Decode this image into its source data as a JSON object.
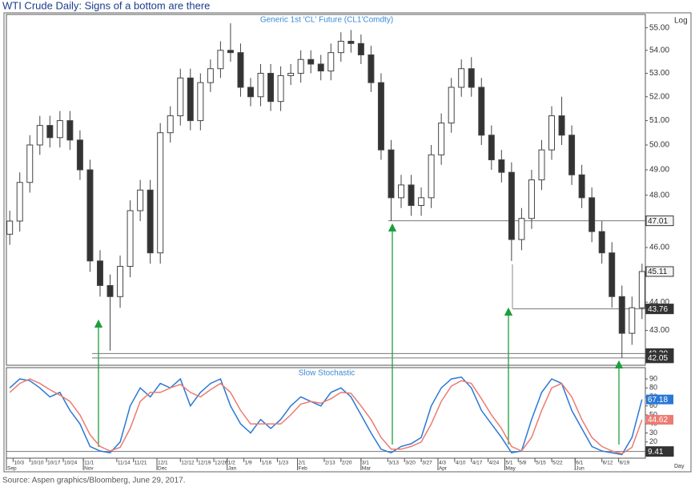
{
  "title": "WTI Crude Daily: Signs of a bottom are there",
  "source": "Source: Aspen graphics/Bloomberg, June 29, 2017.",
  "chart_data": [
    {
      "type": "candlestick",
      "title": "Generic  1st  'CL'  Future  (CL1'Comdty)",
      "scale_label": "Log",
      "log_scale": true,
      "x": [
        0,
        3,
        6,
        9,
        12,
        15,
        18,
        21,
        24,
        27,
        30,
        33,
        36,
        39,
        42,
        45,
        48,
        51,
        54,
        57,
        60,
        63,
        66,
        69,
        72,
        75,
        78,
        81,
        84,
        87,
        90,
        93,
        96,
        99,
        102,
        105,
        108,
        111,
        114,
        117,
        120,
        123,
        126,
        129,
        132,
        135,
        138,
        141,
        144,
        147,
        150,
        153,
        156,
        159,
        162,
        165,
        168,
        171,
        174,
        177,
        180,
        183,
        186,
        189
      ],
      "open": [
        46.5,
        47.0,
        48.5,
        50.0,
        50.8,
        50.3,
        51.0,
        50.2,
        49.0,
        45.5,
        44.6,
        44.2,
        45.3,
        47.4,
        48.2,
        45.8,
        50.5,
        51.2,
        52.8,
        51.0,
        52.6,
        53.2,
        54.0,
        53.9,
        52.4,
        52.0,
        53.0,
        51.8,
        52.9,
        53.0,
        53.6,
        53.4,
        53.1,
        53.9,
        54.4,
        54.3,
        53.8,
        52.6,
        49.8,
        47.9,
        48.4,
        47.6,
        47.9,
        49.6,
        50.9,
        52.4,
        53.2,
        52.4,
        50.4,
        49.4,
        48.9,
        46.3,
        47.1,
        48.6,
        49.8,
        51.2,
        50.4,
        48.8,
        47.9,
        46.6,
        45.8,
        44.2,
        42.9,
        43.8
      ],
      "high": [
        47.4,
        48.9,
        50.4,
        51.2,
        51.2,
        51.4,
        51.4,
        50.6,
        49.4,
        45.9,
        45.0,
        45.7,
        47.8,
        48.6,
        48.6,
        50.9,
        51.6,
        53.2,
        53.2,
        53.0,
        53.6,
        54.4,
        55.2,
        54.3,
        52.8,
        53.4,
        53.4,
        53.3,
        53.4,
        54.0,
        54.0,
        53.8,
        54.3,
        54.8,
        54.9,
        54.7,
        54.2,
        53.0,
        50.2,
        48.8,
        48.8,
        48.3,
        50.0,
        51.3,
        52.8,
        53.6,
        53.7,
        52.8,
        50.8,
        49.8,
        49.3,
        47.5,
        49.0,
        50.2,
        51.6,
        52.0,
        50.8,
        49.2,
        48.3,
        47.0,
        46.2,
        44.6,
        44.2,
        45.4
      ],
      "low": [
        46.1,
        46.6,
        48.1,
        49.6,
        49.9,
        49.9,
        49.8,
        48.6,
        45.1,
        44.2,
        42.3,
        43.8,
        44.9,
        47.0,
        45.4,
        45.4,
        50.1,
        50.8,
        50.6,
        50.6,
        52.2,
        52.8,
        53.5,
        52.0,
        51.6,
        51.6,
        51.4,
        51.4,
        52.5,
        52.6,
        53.0,
        52.7,
        52.7,
        53.5,
        53.9,
        53.4,
        52.2,
        49.4,
        47.0,
        47.5,
        47.2,
        47.2,
        47.5,
        49.2,
        50.5,
        52.0,
        52.0,
        50.0,
        49.0,
        48.5,
        45.5,
        45.9,
        46.7,
        48.2,
        49.4,
        50.0,
        48.4,
        47.5,
        46.2,
        45.4,
        43.8,
        42.05,
        42.5,
        43.4
      ],
      "close": [
        47.0,
        48.5,
        50.0,
        50.8,
        50.3,
        51.0,
        50.2,
        49.0,
        45.5,
        44.6,
        44.2,
        45.3,
        47.4,
        48.2,
        45.8,
        50.5,
        51.2,
        52.8,
        51.0,
        52.6,
        53.2,
        54.0,
        53.9,
        52.4,
        52.0,
        53.0,
        51.8,
        52.9,
        53.0,
        53.6,
        53.4,
        53.1,
        53.9,
        54.4,
        54.3,
        53.8,
        52.6,
        49.8,
        47.9,
        48.4,
        47.6,
        47.9,
        49.6,
        50.9,
        52.4,
        53.2,
        52.4,
        50.4,
        49.4,
        48.9,
        46.3,
        47.1,
        48.6,
        49.8,
        51.2,
        50.4,
        48.8,
        47.9,
        46.6,
        45.8,
        44.2,
        42.9,
        43.8,
        45.11
      ],
      "xlim": [
        -1,
        190
      ],
      "ylim": [
        41.8,
        55.6
      ],
      "yticks": [
        {
          "value": 43,
          "label": "43.00"
        },
        {
          "value": 44,
          "label": "44.00"
        },
        {
          "value": 45,
          "label": "45.00"
        },
        {
          "value": 46,
          "label": "46.00"
        },
        {
          "value": 47,
          "label": "47.00"
        },
        {
          "value": 48,
          "label": "48.00"
        },
        {
          "value": 49,
          "label": "49.00"
        },
        {
          "value": 50,
          "label": "50.00"
        },
        {
          "value": 51,
          "label": "51.00"
        },
        {
          "value": 52,
          "label": "52.00"
        },
        {
          "value": 53,
          "label": "53.00"
        },
        {
          "value": 54,
          "label": "54.00"
        },
        {
          "value": 55,
          "label": "55.00"
        }
      ],
      "levels": [
        47.01,
        45.11,
        43.76,
        {
          "value": 42.2,
          "label": "42.20"
        },
        42.05
      ]
    },
    {
      "type": "line",
      "title": "Slow  Stochastic",
      "x_label": "Day",
      "x": [
        0,
        3,
        6,
        9,
        12,
        15,
        18,
        21,
        24,
        27,
        30,
        33,
        36,
        39,
        42,
        45,
        48,
        51,
        54,
        57,
        60,
        63,
        66,
        69,
        72,
        75,
        78,
        81,
        84,
        87,
        90,
        93,
        96,
        99,
        102,
        105,
        108,
        111,
        114,
        117,
        120,
        123,
        126,
        129,
        132,
        135,
        138,
        141,
        144,
        147,
        150,
        153,
        156,
        159,
        162,
        165,
        168,
        171,
        174,
        177,
        180,
        183,
        186,
        189
      ],
      "series": [
        {
          "color": "#2a78d6",
          "values": [
            80,
            90,
            88,
            80,
            70,
            75,
            55,
            40,
            15,
            10,
            8,
            20,
            60,
            80,
            70,
            85,
            80,
            90,
            60,
            75,
            85,
            90,
            60,
            40,
            30,
            45,
            35,
            45,
            60,
            70,
            65,
            60,
            75,
            80,
            70,
            50,
            30,
            12,
            8,
            15,
            18,
            25,
            60,
            80,
            90,
            92,
            80,
            55,
            40,
            25,
            8,
            10,
            45,
            75,
            90,
            85,
            55,
            35,
            15,
            10,
            8,
            6,
            25,
            67.18
          ]
        },
        {
          "color": "#ec7b72",
          "values": [
            75,
            85,
            90,
            85,
            78,
            72,
            65,
            50,
            28,
            15,
            10,
            14,
            35,
            65,
            75,
            75,
            80,
            84,
            75,
            70,
            78,
            85,
            75,
            55,
            40,
            40,
            40,
            40,
            50,
            62,
            65,
            63,
            68,
            75,
            74,
            60,
            45,
            25,
            12,
            12,
            15,
            20,
            40,
            65,
            82,
            88,
            85,
            68,
            50,
            35,
            15,
            10,
            25,
            55,
            80,
            85,
            70,
            45,
            25,
            15,
            10,
            7,
            14,
            44.62
          ]
        }
      ],
      "xlim": [
        -1,
        190
      ],
      "ylim": [
        2,
        102.5
      ],
      "yticks": [
        10,
        20,
        30,
        40,
        50,
        60,
        70,
        80,
        90
      ],
      "levels": [
        9.41
      ],
      "xticks": [
        {
          "value": 1,
          "label": "10/3"
        },
        {
          "value": 6,
          "label": "10/10"
        },
        {
          "value": 11,
          "label": "10/17"
        },
        {
          "value": 16,
          "label": "10/24"
        },
        {
          "value": 22,
          "label": "11/1"
        },
        {
          "value": 32,
          "label": "11/14"
        },
        {
          "value": 37,
          "label": "11/21"
        },
        {
          "value": 44,
          "label": "12/1"
        },
        {
          "value": 51,
          "label": "12/12"
        },
        {
          "value": 56,
          "label": "12/19"
        },
        {
          "value": 61,
          "label": "12/26"
        },
        {
          "value": 65,
          "label": "1/2"
        },
        {
          "value": 70,
          "label": "1/9"
        },
        {
          "value": 75,
          "label": "1/16"
        },
        {
          "value": 80,
          "label": "1/23"
        },
        {
          "value": 86,
          "label": "2/1"
        },
        {
          "value": 94,
          "label": "2/13"
        },
        {
          "value": 99,
          "label": "2/20"
        },
        {
          "value": 105,
          "label": "3/1"
        },
        {
          "value": 113,
          "label": "3/13"
        },
        {
          "value": 118,
          "label": "3/20"
        },
        {
          "value": 123,
          "label": "3/27"
        },
        {
          "value": 128,
          "label": "4/3"
        },
        {
          "value": 133,
          "label": "4/10"
        },
        {
          "value": 138,
          "label": "4/17"
        },
        {
          "value": 143,
          "label": "4/24"
        },
        {
          "value": 148,
          "label": "5/1"
        },
        {
          "value": 152,
          "label": "5/8"
        },
        {
          "value": 157,
          "label": "5/15"
        },
        {
          "value": 162,
          "label": "5/22"
        },
        {
          "value": 169,
          "label": "6/1"
        },
        {
          "value": 177,
          "label": "6/12"
        },
        {
          "value": 182,
          "label": "6/19"
        }
      ],
      "month_ticks": [
        {
          "value": -1,
          "label": "Sep"
        },
        {
          "value": 22,
          "label": "Nov"
        },
        {
          "value": 44,
          "label": "Dec"
        },
        {
          "value": 65,
          "label": "Jan"
        },
        {
          "value": 86,
          "label": "Feb"
        },
        {
          "value": 105,
          "label": "Mar"
        },
        {
          "value": 128,
          "label": "Apr"
        },
        {
          "value": 148,
          "label": "May"
        },
        {
          "value": 169,
          "label": "Jun"
        }
      ]
    }
  ]
}
